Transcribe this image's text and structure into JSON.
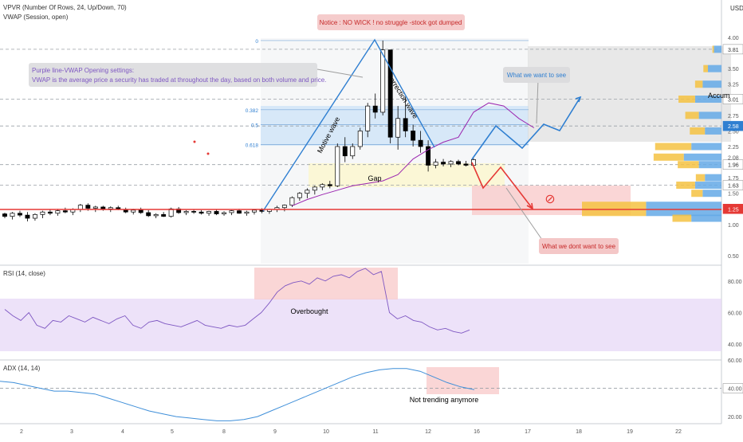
{
  "indicators": {
    "vpvr_label": "VPVR (Number Of Rows, 24, Up/Down, 70)",
    "vwap_label": "VWAP (Session, open)",
    "rsi_label": "RSI (14, close)",
    "adx_label": "ADX (14, 14)"
  },
  "currency": "USD",
  "annotations": {
    "notice": "Notice : NO WICK ! no struggle -stock got dumped",
    "purple_line_1": "Purple line-VWAP Opening settings:",
    "purple_line_2": "VWAP is the average price a security has traded at throughout the day, based on both volume and price.",
    "want": "What we want to see",
    "dont_want": "What we dont want to see",
    "gap": "Gap",
    "motive": "Motive wave",
    "correction": "correction wave",
    "accum": "Accum",
    "overbought": "Overbought",
    "not_trending": "Not trending anymore",
    "no_symbol": "⊘"
  },
  "colors": {
    "up": "#ffffff",
    "down": "#000000",
    "vwap": "#9c27b0",
    "wave": "#2f7fd1",
    "red": "#e53935",
    "rsi": "#7e57c2",
    "adx": "#3f8fd9",
    "vol_up": "#64a9e6",
    "vol_down": "#f5c242"
  },
  "chart_data": [
    {
      "type": "candlestick",
      "ylim": [
        0.5,
        4.0
      ],
      "y_ticks": [
        0.5,
        1.0,
        1.25,
        1.5,
        1.63,
        1.75,
        1.96,
        2.08,
        2.25,
        2.5,
        2.58,
        2.75,
        3.01,
        3.25,
        3.5,
        3.81,
        4.0
      ],
      "y_ticks_labels": [
        "0.50",
        "1.00",
        "1.25",
        "1.50",
        "1.63",
        "1.75",
        "1.96",
        "2.08",
        "2.25",
        "2.50",
        "2.58",
        "2.75",
        "3.01",
        "3.25",
        "3.50",
        "3.81",
        "4.00"
      ],
      "highlighted_levels": [
        "3.81",
        "3.01",
        "2.58",
        "1.96",
        "1.63",
        "1.25"
      ],
      "x_ticks": [
        "2",
        "3",
        "4",
        "5",
        "8",
        "9",
        "10",
        "11",
        "12",
        "16",
        "17",
        "18",
        "19",
        "22"
      ],
      "fib_levels": [
        {
          "label": "0",
          "value": 3.95
        },
        {
          "label": "0.382",
          "value": 2.84
        },
        {
          "label": "0.5",
          "value": 2.6
        },
        {
          "label": "0.618",
          "value": 2.28
        }
      ],
      "candles": [
        [
          1.17,
          1.19,
          1.1,
          1.13
        ],
        [
          1.13,
          1.2,
          1.08,
          1.18
        ],
        [
          1.18,
          1.22,
          1.12,
          1.15
        ],
        [
          1.15,
          1.2,
          1.05,
          1.1
        ],
        [
          1.1,
          1.18,
          1.06,
          1.16
        ],
        [
          1.16,
          1.22,
          1.1,
          1.2
        ],
        [
          1.2,
          1.24,
          1.15,
          1.18
        ],
        [
          1.18,
          1.25,
          1.14,
          1.22
        ],
        [
          1.22,
          1.27,
          1.18,
          1.2
        ],
        [
          1.2,
          1.26,
          1.15,
          1.24
        ],
        [
          1.24,
          1.33,
          1.2,
          1.31
        ],
        [
          1.31,
          1.34,
          1.22,
          1.26
        ],
        [
          1.26,
          1.3,
          1.2,
          1.28
        ],
        [
          1.28,
          1.3,
          1.22,
          1.25
        ],
        [
          1.25,
          1.29,
          1.2,
          1.27
        ],
        [
          1.27,
          1.3,
          1.23,
          1.24
        ],
        [
          1.24,
          1.27,
          1.18,
          1.2
        ],
        [
          1.2,
          1.25,
          1.16,
          1.23
        ],
        [
          1.23,
          1.27,
          1.17,
          1.19
        ],
        [
          1.19,
          1.23,
          1.12,
          1.14
        ],
        [
          1.14,
          1.18,
          1.1,
          1.16
        ],
        [
          1.16,
          1.2,
          1.12,
          1.13
        ],
        [
          1.13,
          1.27,
          1.11,
          1.25
        ],
        [
          1.25,
          1.28,
          1.17,
          1.19
        ],
        [
          1.19,
          1.23,
          1.15,
          1.21
        ],
        [
          1.21,
          1.24,
          1.17,
          1.2
        ],
        [
          1.2,
          1.23,
          1.16,
          1.18
        ],
        [
          1.18,
          1.22,
          1.14,
          1.21
        ],
        [
          1.21,
          1.24,
          1.15,
          1.17
        ],
        [
          1.17,
          1.21,
          1.14,
          1.19
        ],
        [
          1.19,
          1.23,
          1.15,
          1.22
        ],
        [
          1.22,
          1.25,
          1.17,
          1.18
        ],
        [
          1.18,
          1.22,
          1.14,
          1.2
        ],
        [
          1.2,
          1.24,
          1.16,
          1.23
        ],
        [
          1.23,
          1.26,
          1.18,
          1.21
        ],
        [
          1.21,
          1.25,
          1.17,
          1.24
        ],
        [
          1.24,
          1.3,
          1.2,
          1.27
        ],
        [
          1.27,
          1.32,
          1.21,
          1.31
        ],
        [
          1.31,
          1.45,
          1.28,
          1.43
        ],
        [
          1.43,
          1.52,
          1.38,
          1.5
        ],
        [
          1.5,
          1.58,
          1.42,
          1.55
        ],
        [
          1.55,
          1.62,
          1.48,
          1.6
        ],
        [
          1.6,
          1.66,
          1.55,
          1.64
        ],
        [
          1.64,
          1.7,
          1.58,
          1.62
        ],
        [
          1.62,
          2.3,
          1.6,
          2.25
        ],
        [
          2.25,
          2.4,
          2.0,
          2.1
        ],
        [
          2.1,
          2.3,
          2.05,
          2.25
        ],
        [
          2.25,
          2.55,
          2.2,
          2.5
        ],
        [
          2.5,
          2.95,
          2.4,
          2.9
        ],
        [
          2.9,
          3.1,
          2.7,
          2.8
        ],
        [
          2.8,
          3.95,
          2.75,
          3.8
        ],
        [
          3.8,
          3.8,
          2.3,
          2.4
        ],
        [
          2.4,
          2.9,
          2.2,
          2.7
        ],
        [
          2.7,
          3.05,
          2.4,
          2.5
        ],
        [
          2.5,
          2.6,
          2.25,
          2.35
        ],
        [
          2.35,
          2.5,
          2.15,
          2.25
        ],
        [
          2.25,
          2.35,
          1.85,
          1.95
        ],
        [
          1.95,
          2.05,
          1.9,
          2.0
        ],
        [
          2.0,
          2.05,
          1.93,
          1.97
        ],
        [
          1.97,
          2.03,
          1.92,
          2.01
        ],
        [
          2.01,
          2.04,
          1.95,
          1.97
        ],
        [
          1.97,
          2.02,
          1.93,
          1.95
        ],
        [
          1.95,
          2.06,
          1.93,
          2.04
        ]
      ],
      "vwap": [
        [
          1.3,
          38
        ],
        [
          1.4,
          40
        ],
        [
          1.48,
          42
        ],
        [
          1.55,
          44
        ],
        [
          1.62,
          46
        ],
        [
          1.66,
          48
        ],
        [
          1.7,
          50
        ],
        [
          1.8,
          52
        ],
        [
          2.05,
          54
        ],
        [
          2.2,
          56
        ],
        [
          2.32,
          58
        ],
        [
          2.4,
          60
        ],
        [
          2.8,
          62
        ],
        [
          2.95,
          64
        ],
        [
          2.9,
          66
        ],
        [
          2.7,
          68
        ],
        [
          2.55,
          70
        ]
      ],
      "volume_profile": [
        {
          "price": 3.81,
          "up": 10,
          "down": 2
        },
        {
          "price": 3.5,
          "up": 18,
          "down": 6
        },
        {
          "price": 3.25,
          "up": 25,
          "down": 10
        },
        {
          "price": 3.01,
          "up": 35,
          "down": 22
        },
        {
          "price": 2.75,
          "up": 30,
          "down": 18
        },
        {
          "price": 2.5,
          "up": 22,
          "down": 20
        },
        {
          "price": 2.25,
          "up": 40,
          "down": 48
        },
        {
          "price": 2.08,
          "up": 50,
          "down": 40
        },
        {
          "price": 1.96,
          "up": 30,
          "down": 28
        },
        {
          "price": 1.75,
          "up": 22,
          "down": 12
        },
        {
          "price": 1.63,
          "up": 35,
          "down": 25
        },
        {
          "price": 1.5,
          "up": 25,
          "down": 15
        },
        {
          "price": 1.25,
          "up": 100,
          "down": 85
        },
        {
          "price": 1.1,
          "up": 40,
          "down": 25
        }
      ]
    },
    {
      "type": "line",
      "name": "RSI",
      "ylim": [
        30,
        90
      ],
      "y_ticks": [
        "80.00",
        "60.00",
        "40.00"
      ],
      "values": [
        62,
        58,
        55,
        60,
        52,
        50,
        55,
        54,
        58,
        56,
        54,
        57,
        55,
        53,
        56,
        58,
        52,
        50,
        54,
        55,
        53,
        52,
        51,
        53,
        55,
        52,
        51,
        50,
        52,
        51,
        52,
        56,
        60,
        66,
        73,
        77,
        79,
        80,
        78,
        82,
        80,
        83,
        84,
        82,
        86,
        88,
        84,
        86,
        60,
        56,
        58,
        55,
        54,
        51,
        49,
        50,
        48,
        47,
        49
      ]
    },
    {
      "type": "line",
      "name": "ADX",
      "ylim": [
        15,
        60
      ],
      "y_ticks": [
        "60.00",
        "40.00",
        "20.00"
      ],
      "values": [
        45,
        44,
        42,
        40,
        38,
        38,
        37,
        36,
        33,
        30,
        27,
        24,
        22,
        20,
        19,
        18,
        17,
        17,
        18,
        20,
        24,
        28,
        32,
        36,
        40,
        44,
        48,
        51,
        53,
        54,
        54,
        52,
        48,
        44,
        41,
        39
      ]
    }
  ]
}
